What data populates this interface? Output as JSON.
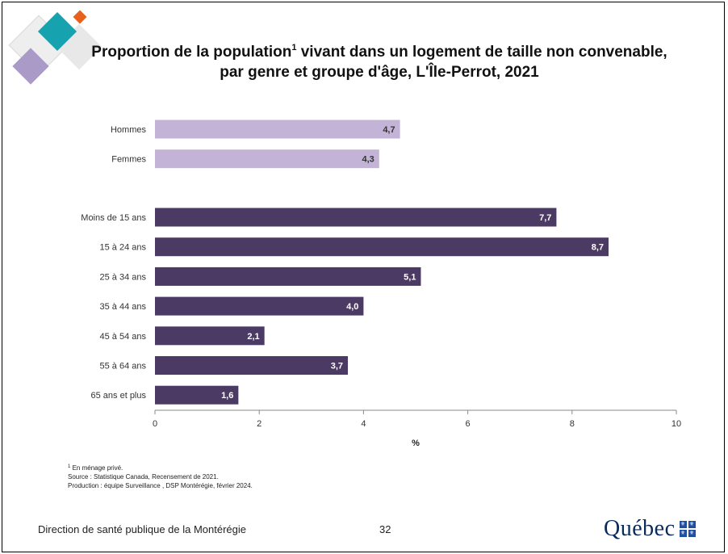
{
  "slide": {
    "title_part1": "Proportion de la population",
    "title_sup": "1",
    "title_part2": " vivant dans un logement de taille non convenable,",
    "title_line2": "par genre et groupe d'âge, L'Île-Perrot, 2021",
    "footnote_sup": "1",
    "footnote_text": " En ménage privé.",
    "source": "Source : Statistique Canada, Recensement de 2021.",
    "production": "Production : équipe Surveillance , DSP Montérégie, février 2024.",
    "footer_org": "Direction de santé publique de la Montérégie",
    "page_number": "32",
    "logo_word": "Québec",
    "logo_flag_glyph": "⚜"
  },
  "colors": {
    "gender_bar": "#c3b3d6",
    "age_bar": "#4b3a63",
    "gender_label": "#333333",
    "age_label": "#ffffff",
    "logo_blue": "#1f4fa0",
    "deco_teal": "#17a2b0",
    "deco_orange": "#e8601c",
    "deco_lavender": "#a99ac8",
    "deco_grey": "#e4e4e4"
  },
  "chart_data": {
    "type": "bar",
    "orientation": "horizontal",
    "title": "Proportion de la population¹ vivant dans un logement de taille non convenable, par genre et groupe d'âge, L'Île-Perrot, 2021",
    "xlabel": "%",
    "ylabel": "",
    "xlim": [
      0,
      10
    ],
    "xticks": [
      "0",
      "2",
      "4",
      "6",
      "8",
      "10"
    ],
    "grid": false,
    "groups": [
      {
        "categories": [
          "Hommes",
          "Femmes"
        ],
        "values": [
          4.7,
          4.3
        ],
        "labels": [
          "4,7",
          "4,3"
        ]
      },
      {
        "categories": [
          "Moins de 15 ans",
          "15 à 24 ans",
          "25 à 34 ans",
          "35 à 44 ans",
          "45 à 54 ans",
          "55 à 64 ans",
          "65 ans et plus"
        ],
        "values": [
          7.7,
          8.7,
          5.1,
          4.0,
          2.1,
          3.7,
          1.6
        ],
        "labels": [
          "7,7",
          "8,7",
          "5,1",
          "4,0",
          "2,1",
          "3,7",
          "1,6"
        ]
      }
    ]
  }
}
